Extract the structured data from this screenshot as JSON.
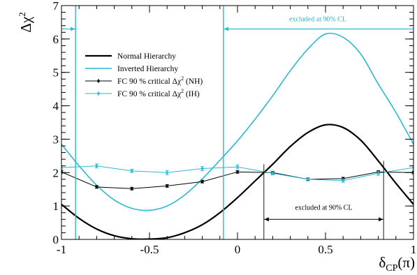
{
  "chart_data": {
    "type": "line",
    "xlabel": "δ_CP(π)",
    "ylabel": "Δχ²",
    "xlim": [
      -1,
      1
    ],
    "ylim": [
      0,
      7
    ],
    "xticks": [
      -1,
      -0.5,
      0,
      0.5,
      1
    ],
    "xtick_labels": [
      "-1",
      "-0.5",
      "0",
      "0.5",
      "1"
    ],
    "yticks": [
      0,
      1,
      2,
      3,
      4,
      5,
      6,
      7
    ],
    "ytick_labels": [
      "0",
      "1",
      "2",
      "3",
      "4",
      "5",
      "6",
      "7"
    ],
    "grid": false,
    "legend_position": "upper-left",
    "colors": {
      "nh": "#000000",
      "ih": "#2ab9d6",
      "frame": "#000000"
    },
    "legend": [
      {
        "label": "Normal Hierarchy",
        "series": "nh",
        "style": "line"
      },
      {
        "label": "Inverted Hierarchy",
        "series": "ih",
        "style": "line"
      },
      {
        "label": "FC 90 % critical Δχ² (NH)",
        "series": "fc_nh",
        "style": "marker"
      },
      {
        "label": "FC 90 % critical Δχ² (IH)",
        "series": "fc_ih",
        "style": "marker"
      }
    ],
    "series": [
      {
        "key": "nh",
        "name": "Normal Hierarchy",
        "color": "#000000",
        "x": [
          -1,
          -0.9,
          -0.8,
          -0.7,
          -0.6,
          -0.5,
          -0.4,
          -0.3,
          -0.2,
          -0.1,
          0,
          0.1,
          0.2,
          0.3,
          0.4,
          0.5,
          0.6,
          0.7,
          0.8,
          0.9,
          1
        ],
        "y": [
          1.05,
          0.63,
          0.31,
          0.11,
          0.02,
          0.01,
          0.05,
          0.2,
          0.44,
          0.8,
          1.25,
          1.75,
          2.25,
          2.78,
          3.2,
          3.43,
          3.35,
          2.97,
          2.35,
          1.68,
          1.05
        ]
      },
      {
        "key": "ih",
        "name": "Inverted Hierarchy",
        "color": "#2ab9d6",
        "x": [
          -1,
          -0.9,
          -0.8,
          -0.7,
          -0.6,
          -0.5,
          -0.4,
          -0.3,
          -0.2,
          -0.1,
          0,
          0.1,
          0.2,
          0.3,
          0.4,
          0.5,
          0.6,
          0.7,
          0.8,
          0.9,
          1
        ],
        "y": [
          2.85,
          2.2,
          1.62,
          1.18,
          0.93,
          0.87,
          1.0,
          1.33,
          1.81,
          2.37,
          2.95,
          3.6,
          4.3,
          5.05,
          5.7,
          6.15,
          6.05,
          5.55,
          4.65,
          3.8,
          2.85
        ]
      },
      {
        "key": "fc_nh",
        "name": "FC 90 % critical Δχ² (NH)",
        "color": "#000000",
        "x": [
          -1,
          -0.8,
          -0.6,
          -0.4,
          -0.2,
          0,
          0.2,
          0.4,
          0.6,
          0.8,
          1
        ],
        "y": [
          2.02,
          1.57,
          1.52,
          1.6,
          1.73,
          2.02,
          2.0,
          1.8,
          1.82,
          2.02,
          2.0
        ],
        "errors": [
          0.04,
          0.04,
          0.04,
          0.04,
          0.04,
          0.04,
          0.04,
          0.04,
          0.04,
          0.04,
          0.04
        ]
      },
      {
        "key": "fc_ih",
        "name": "FC 90 % critical Δχ² (IH)",
        "color": "#2ab9d6",
        "x": [
          -1,
          -0.8,
          -0.6,
          -0.4,
          -0.2,
          0,
          0.2,
          0.4,
          0.6,
          0.8,
          1
        ],
        "y": [
          2.15,
          2.2,
          2.05,
          2.0,
          2.12,
          2.17,
          1.98,
          1.8,
          1.76,
          1.98,
          2.15
        ],
        "errors": [
          0.06,
          0.06,
          0.05,
          0.06,
          0.06,
          0.06,
          0.05,
          0.05,
          0.05,
          0.06,
          0.06
        ]
      }
    ],
    "exclusions": [
      {
        "key": "ih_excluded",
        "label": "excluded at 90% CL",
        "color": "#2ab9d6",
        "y": 6.3,
        "boundaries": [
          -0.92,
          -0.08
        ],
        "ranges": [
          [
            -1,
            -0.92
          ],
          [
            -0.08,
            1
          ]
        ]
      },
      {
        "key": "nh_excluded",
        "label": "excluded at 90% CL",
        "color": "#000000",
        "y": 0.6,
        "boundaries": [
          0.15,
          0.83
        ],
        "ranges": [
          [
            0.15,
            0.83
          ]
        ]
      }
    ]
  }
}
